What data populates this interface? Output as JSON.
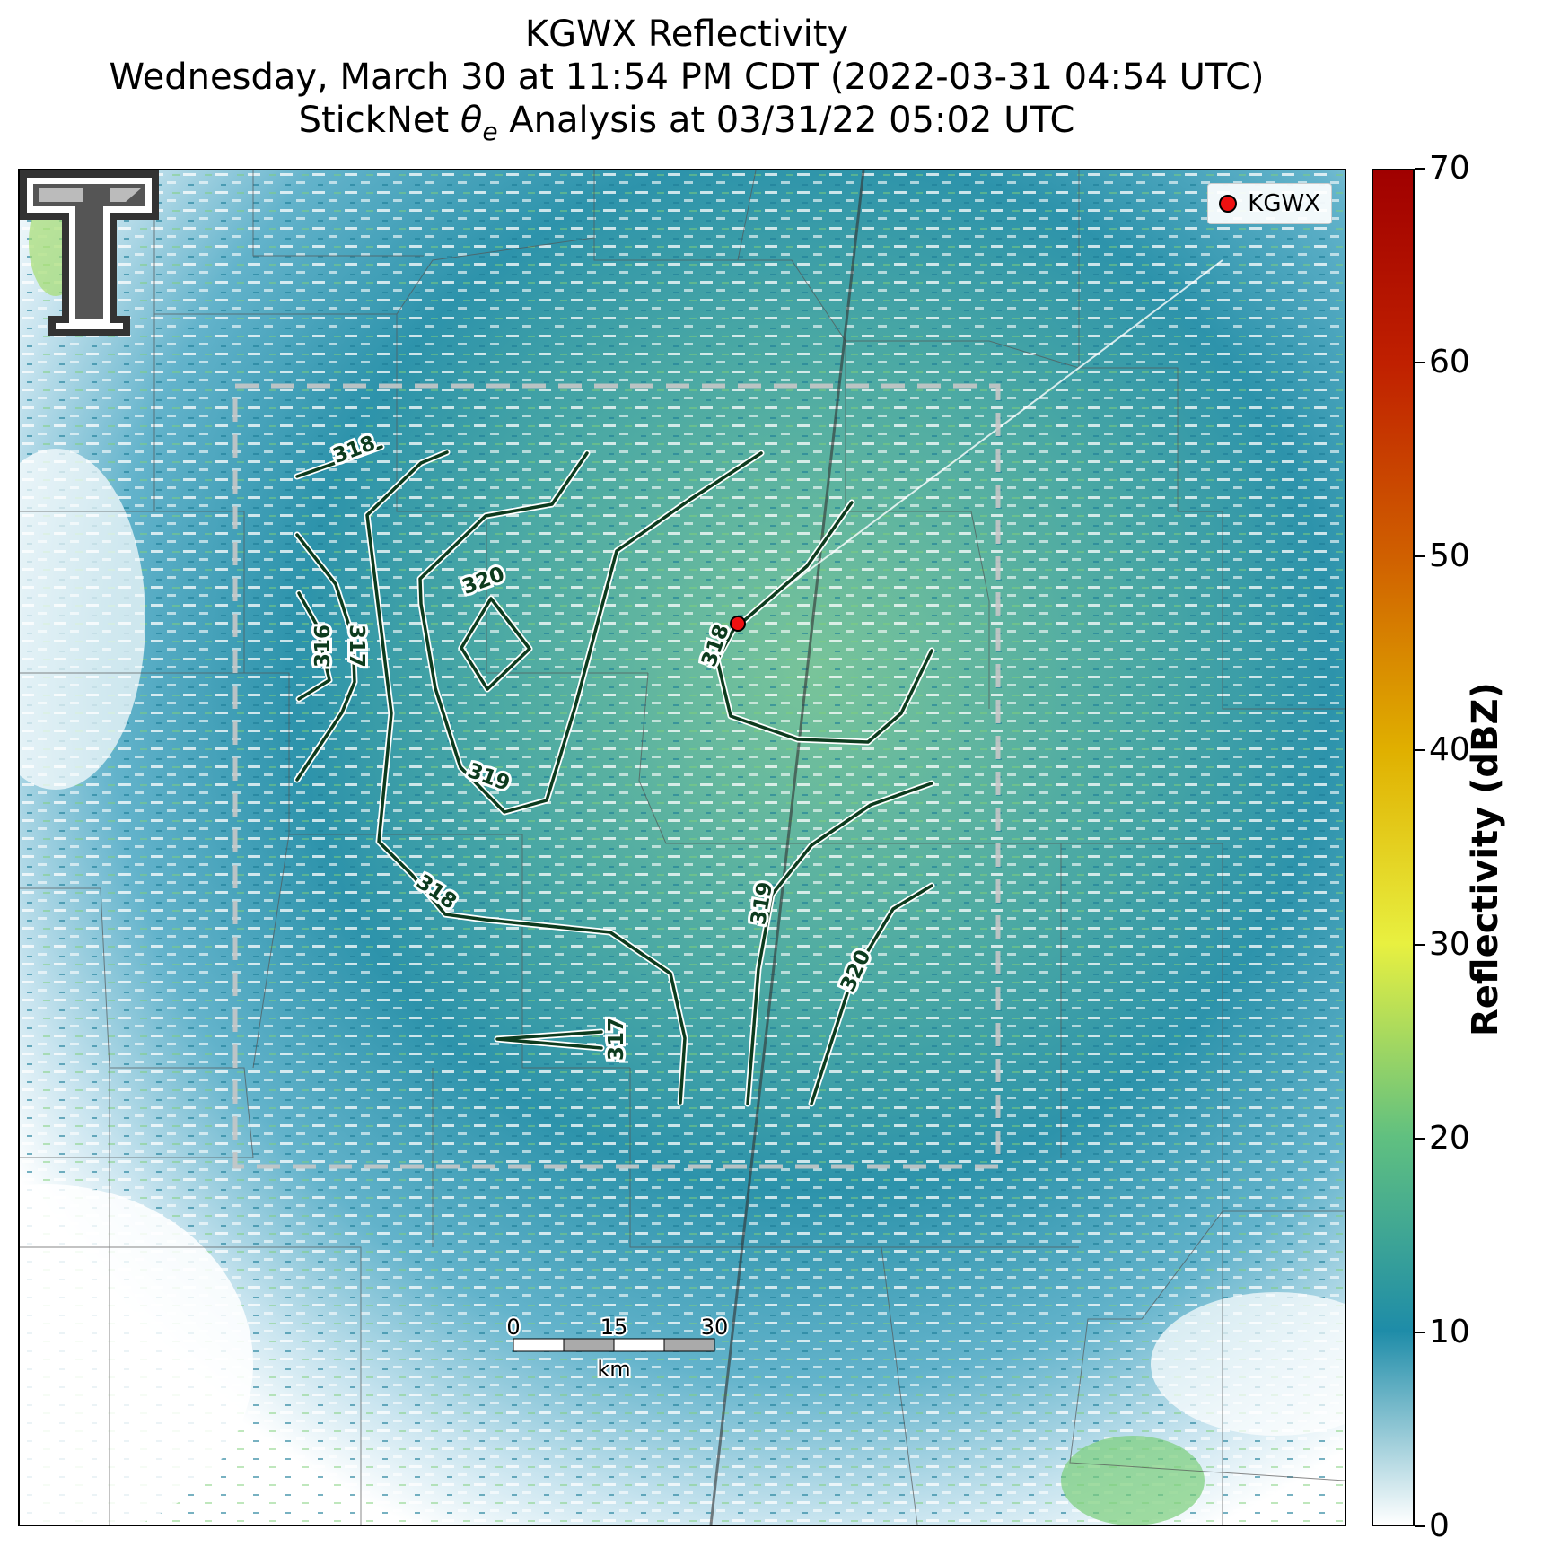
{
  "title": {
    "line1": "KGWX Reflectivity",
    "line2": "Wednesday, March 30 at 11:54 PM CDT (2022-03-31 04:54 UTC)",
    "line3_prefix": "StickNet ",
    "line3_symbol": "θ",
    "line3_sub": "e",
    "line3_suffix": " Analysis at 03/31/22 05:02 UTC"
  },
  "legend": {
    "marker_label": "KGWX",
    "marker_color": "#ee1111"
  },
  "radar_site": {
    "name": "KGWX"
  },
  "contours": [
    {
      "value": 316,
      "label": "316"
    },
    {
      "value": 317,
      "label": "317"
    },
    {
      "value": 317,
      "label": "317"
    },
    {
      "value": 318,
      "label": "318"
    },
    {
      "value": 318,
      "label": "318"
    },
    {
      "value": 318,
      "label": "318"
    },
    {
      "value": 319,
      "label": "319"
    },
    {
      "value": 319,
      "label": "319"
    },
    {
      "value": 320,
      "label": "320"
    },
    {
      "value": 320,
      "label": "320"
    }
  ],
  "contour_color": "#0d3b1e",
  "scale_bar": {
    "ticks": [
      "0",
      "15",
      "30"
    ],
    "unit": "km"
  },
  "colorbar": {
    "title": "Reflectivity (dBZ)",
    "min": 0,
    "max": 70,
    "tick_labels": [
      "0",
      "10",
      "20",
      "30",
      "40",
      "50",
      "60",
      "70"
    ],
    "colors": [
      "#ffffff",
      "#1e8ca8",
      "#60c080",
      "#e8f040",
      "#e0b000",
      "#d06000",
      "#c02000",
      "#a00000"
    ]
  }
}
